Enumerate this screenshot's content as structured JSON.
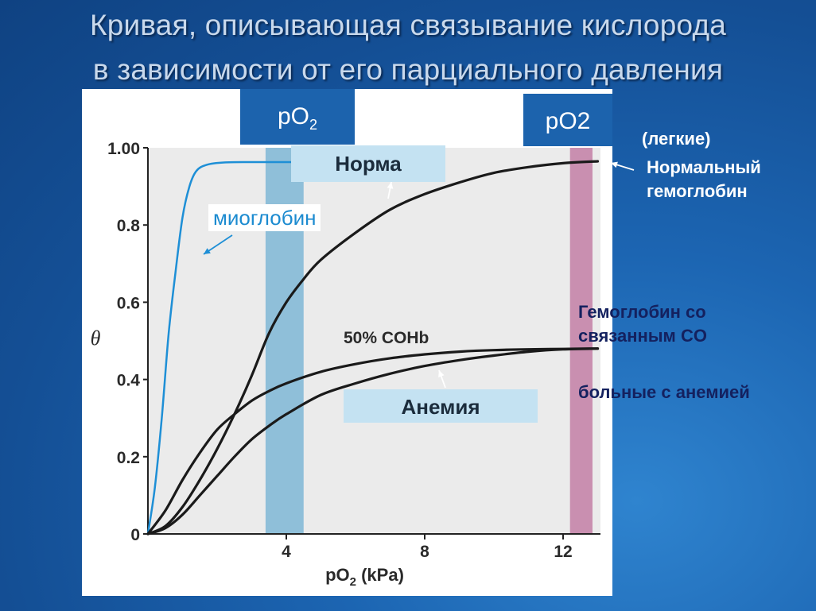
{
  "slide": {
    "title_line1": "Кривая, описывающая связывание кислорода",
    "title_line2": "в зависимости от его парциального давления"
  },
  "headers": {
    "po2_left_base": "pO",
    "po2_left_sub": "2",
    "po2_right": "pO2"
  },
  "labels": {
    "norma": "Норма",
    "anemia": "Анемия",
    "myoglobin": "миоглобин",
    "coHb": "50% COHb"
  },
  "notes": {
    "lungs": "(легкие)",
    "normal_hb_line1": "Нормальный",
    "normal_hb_line2": "гемоглобин",
    "co_line1": "Гемоглобин со",
    "co_line2": "связанным CO",
    "anemia_patients": "больные с анемией"
  },
  "colors": {
    "plot_bg": "#ebebeb",
    "curve": "#1a1a1a",
    "myoglobin": "#1e8fd6",
    "tissue_band": "#8fbfd9",
    "lung_band": "#c98fb0"
  },
  "chart_data": {
    "type": "line",
    "xlabel_base": "pO",
    "xlabel_sub": "2",
    "xlabel_unit": " (kPa)",
    "ylabel": "θ",
    "xlim": [
      0,
      13.2
    ],
    "ylim": [
      0,
      1.0
    ],
    "x_ticks": [
      {
        "value": 4,
        "label": "4"
      },
      {
        "value": 8,
        "label": "8"
      },
      {
        "value": 12,
        "label": "12"
      }
    ],
    "y_ticks": [
      {
        "value": 0,
        "label": "0"
      },
      {
        "value": 0.2,
        "label": "0.2"
      },
      {
        "value": 0.4,
        "label": "0.4"
      },
      {
        "value": 0.6,
        "label": "0.6"
      },
      {
        "value": 0.8,
        "label": "0.8"
      },
      {
        "value": 1.0,
        "label": "1.00"
      }
    ],
    "bands": [
      {
        "x0": 3.4,
        "x1": 4.5,
        "kind": "tissue"
      },
      {
        "x0": 12.2,
        "x1": 12.85,
        "kind": "lung"
      }
    ],
    "series": [
      {
        "key": "myoglobin",
        "points": [
          [
            0,
            0
          ],
          [
            0.2,
            0.12
          ],
          [
            0.4,
            0.3
          ],
          [
            0.6,
            0.52
          ],
          [
            0.8,
            0.68
          ],
          [
            1.0,
            0.82
          ],
          [
            1.2,
            0.9
          ],
          [
            1.4,
            0.94
          ],
          [
            1.7,
            0.956
          ],
          [
            2.2,
            0.962
          ],
          [
            3.0,
            0.963
          ],
          [
            4.2,
            0.963
          ]
        ]
      },
      {
        "key": "normal",
        "points": [
          [
            0,
            0
          ],
          [
            0.5,
            0.02
          ],
          [
            1.0,
            0.07
          ],
          [
            1.5,
            0.14
          ],
          [
            2.0,
            0.22
          ],
          [
            2.5,
            0.31
          ],
          [
            3.0,
            0.41
          ],
          [
            3.5,
            0.52
          ],
          [
            4.0,
            0.6
          ],
          [
            4.5,
            0.66
          ],
          [
            5.0,
            0.71
          ],
          [
            6.0,
            0.78
          ],
          [
            7.0,
            0.84
          ],
          [
            8.0,
            0.88
          ],
          [
            9.0,
            0.91
          ],
          [
            10.0,
            0.935
          ],
          [
            11.0,
            0.95
          ],
          [
            12.0,
            0.96
          ],
          [
            13.0,
            0.965
          ]
        ]
      },
      {
        "key": "cohb",
        "points": [
          [
            0,
            0
          ],
          [
            0.5,
            0.06
          ],
          [
            1.0,
            0.14
          ],
          [
            1.5,
            0.21
          ],
          [
            2.0,
            0.27
          ],
          [
            2.5,
            0.31
          ],
          [
            3.0,
            0.345
          ],
          [
            3.5,
            0.37
          ],
          [
            4.0,
            0.39
          ],
          [
            5.0,
            0.42
          ],
          [
            6.0,
            0.44
          ],
          [
            7.0,
            0.455
          ],
          [
            8.0,
            0.465
          ],
          [
            9.0,
            0.472
          ],
          [
            10.0,
            0.476
          ],
          [
            11.0,
            0.478
          ],
          [
            12.0,
            0.479
          ],
          [
            13.0,
            0.48
          ]
        ]
      },
      {
        "key": "anemia",
        "points": [
          [
            0,
            0
          ],
          [
            0.5,
            0.015
          ],
          [
            1.0,
            0.05
          ],
          [
            1.5,
            0.1
          ],
          [
            2.0,
            0.15
          ],
          [
            2.5,
            0.2
          ],
          [
            3.0,
            0.245
          ],
          [
            3.5,
            0.28
          ],
          [
            4.0,
            0.31
          ],
          [
            5.0,
            0.36
          ],
          [
            6.0,
            0.39
          ],
          [
            7.0,
            0.415
          ],
          [
            8.0,
            0.435
          ],
          [
            9.0,
            0.45
          ],
          [
            10.0,
            0.462
          ],
          [
            11.0,
            0.472
          ],
          [
            12.0,
            0.478
          ],
          [
            13.0,
            0.48
          ]
        ]
      }
    ]
  }
}
